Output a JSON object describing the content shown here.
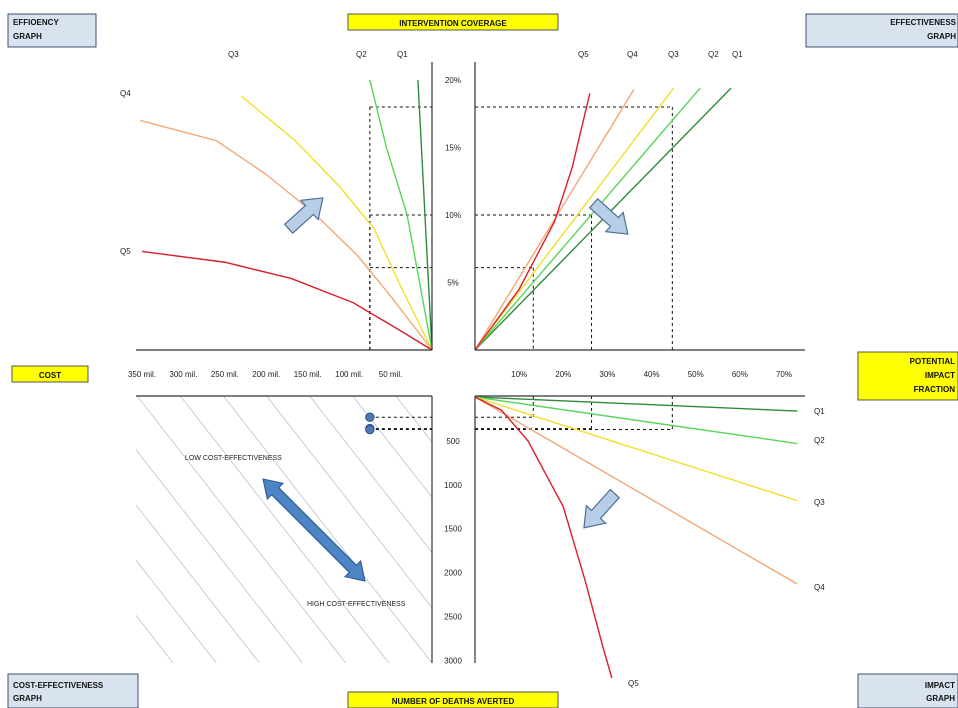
{
  "labels": {
    "top_center": "INTERVENTION COVERAGE",
    "bottom_center": "NUMBER OF DEATHS AVERTED",
    "left_center": "COST",
    "right_center_lines": [
      "POTENTIAL",
      "IMPACT",
      "FRACTION"
    ],
    "top_left_lines": [
      "EFFIOENCY",
      "GRAPH"
    ],
    "top_right_lines": [
      "EFFECTIVENESS",
      "GRAPH"
    ],
    "bottom_left_lines": [
      "COST-EFFECTIVENESS",
      "GRAPH"
    ],
    "bottom_right_lines": [
      "IMPACT",
      "GRAPH"
    ]
  },
  "colors": {
    "box_fill": "#d9e3ef",
    "box_stroke": "#3f5268",
    "yellow_fill": "#ffff00",
    "yellow_stroke": "#555555",
    "axis": "#333333",
    "guide": "#111111",
    "q1": "#2e8b3a",
    "q2": "#59d559",
    "q3": "#f0df2a",
    "q4": "#f2a777",
    "q5": "#db1e2b",
    "arrow_light_fill": "#b8cde6",
    "arrow_light_stroke": "#4c6f96",
    "arrow_dark_fill": "#4d84c6",
    "arrow_dark_stroke": "#325f95",
    "hatch": "#8aa4bf"
  },
  "chart_data": [
    {
      "title": "EFFIOENCY GRAPH",
      "type": "line",
      "x_axis": {
        "label": "COST",
        "tick_labels": [
          "350 mil.",
          "300 mil.",
          "250 mil.",
          "200 mil.",
          "150 mil.",
          "100 mil.",
          "50 mil."
        ],
        "tick_values": [
          350,
          300,
          250,
          200,
          150,
          100,
          50
        ],
        "range": [
          0,
          360
        ],
        "units": "mil."
      },
      "y_axis": {
        "label": "INTERVENTION COVERAGE",
        "tick_labels": [
          "5%",
          "10%",
          "15%",
          "20%"
        ],
        "tick_values": [
          5,
          10,
          15,
          20
        ],
        "range": [
          0,
          20
        ]
      },
      "series": [
        {
          "name": "Q1",
          "color": "#2e8b3a",
          "points": [
            [
              0,
              0
            ],
            [
              17,
              20
            ]
          ]
        },
        {
          "name": "Q2",
          "color": "#59d559",
          "points": [
            [
              0,
              0
            ],
            [
              30,
              10
            ],
            [
              55,
              15
            ],
            [
              67,
              18
            ],
            [
              75,
              20
            ]
          ]
        },
        {
          "name": "Q3",
          "color": "#f0df2a",
          "points": [
            [
              0,
              0
            ],
            [
              40,
              5
            ],
            [
              70,
              9
            ],
            [
              110,
              12
            ],
            [
              165,
              15.5
            ],
            [
              230,
              18.8
            ]
          ]
        },
        {
          "name": "Q4",
          "color": "#f2a777",
          "points": [
            [
              0,
              0
            ],
            [
              50,
              4
            ],
            [
              90,
              7
            ],
            [
              140,
              10
            ],
            [
              200,
              13
            ],
            [
              260,
              15.5
            ],
            [
              352,
              17
            ]
          ]
        },
        {
          "name": "Q5",
          "color": "#db1e2b",
          "points": [
            [
              0,
              0
            ],
            [
              40,
              1.5
            ],
            [
              95,
              3.5
            ],
            [
              170,
              5.3
            ],
            [
              250,
              6.5
            ],
            [
              350,
              7.3
            ]
          ]
        }
      ],
      "guides": [
        {
          "coverage": 6.1,
          "cost": 75
        },
        {
          "coverage": 10,
          "cost": 75
        },
        {
          "coverage": 18,
          "cost": 75
        }
      ]
    },
    {
      "title": "EFFECTIVENESS GRAPH",
      "type": "line",
      "x_axis": {
        "label": "POTENTIAL IMPACT FRACTION",
        "tick_labels": [
          "10%",
          "20%",
          "30%",
          "40%",
          "50%",
          "60%",
          "70%"
        ],
        "tick_values": [
          10,
          20,
          30,
          40,
          50,
          60,
          70
        ],
        "range": [
          0,
          75
        ]
      },
      "y_axis": {
        "label": "INTERVENTION COVERAGE",
        "tick_labels": [
          "5%",
          "10%",
          "15%",
          "20%"
        ],
        "tick_values": [
          5,
          10,
          15,
          20
        ],
        "range": [
          0,
          20
        ]
      },
      "series": [
        {
          "name": "Q1",
          "color": "#2e8b3a",
          "points": [
            [
              0,
              0
            ],
            [
              58,
              19.4
            ]
          ]
        },
        {
          "name": "Q2",
          "color": "#59d559",
          "points": [
            [
              0,
              0
            ],
            [
              51,
              19.4
            ]
          ]
        },
        {
          "name": "Q3",
          "color": "#f0df2a",
          "points": [
            [
              0,
              0
            ],
            [
              45,
              19.4
            ]
          ]
        },
        {
          "name": "Q4",
          "color": "#f2a777",
          "points": [
            [
              0,
              0
            ],
            [
              36,
              19.3
            ]
          ]
        },
        {
          "name": "Q5",
          "color": "#db1e2b",
          "points": [
            [
              0,
              0
            ],
            [
              10,
              4.5
            ],
            [
              18,
              9.5
            ],
            [
              22,
              13.5
            ],
            [
              26,
              19
            ]
          ]
        }
      ],
      "guides": [
        {
          "coverage": 6.1,
          "impact": 13.2
        },
        {
          "coverage": 10,
          "impact": 26.4
        },
        {
          "coverage": 18,
          "impact": 44.7
        }
      ]
    },
    {
      "title": "IMPACT GRAPH",
      "type": "line",
      "x_axis": {
        "label": "POTENTIAL IMPACT FRACTION",
        "tick_labels": [
          "10%",
          "20%",
          "30%",
          "40%",
          "50%",
          "60%",
          "70%"
        ],
        "tick_values": [
          10,
          20,
          30,
          40,
          50,
          60,
          70
        ],
        "range": [
          0,
          75
        ]
      },
      "y_axis": {
        "label": "NUMBER OF DEATHS AVERTED",
        "tick_labels": [
          "500",
          "1000",
          "1500",
          "2000",
          "2500",
          "3000"
        ],
        "tick_values": [
          500,
          1000,
          1500,
          2000,
          2500,
          3000
        ],
        "range": [
          0,
          3200
        ]
      },
      "series": [
        {
          "name": "Q1",
          "color": "#2e8b3a",
          "points": [
            [
              0,
              0
            ],
            [
              73,
              160
            ]
          ]
        },
        {
          "name": "Q2",
          "color": "#59d559",
          "points": [
            [
              0,
              0
            ],
            [
              73,
              530
            ]
          ]
        },
        {
          "name": "Q3",
          "color": "#f0df2a",
          "points": [
            [
              0,
              0
            ],
            [
              73,
              1180
            ]
          ]
        },
        {
          "name": "Q4",
          "color": "#f2a777",
          "points": [
            [
              0,
              0
            ],
            [
              73,
              2130
            ]
          ]
        },
        {
          "name": "Q5",
          "color": "#db1e2b",
          "points": [
            [
              0,
              0
            ],
            [
              6,
              150
            ],
            [
              12,
              500
            ],
            [
              20,
              1250
            ],
            [
              25,
              2100
            ],
            [
              29,
              2850
            ],
            [
              31,
              3200
            ]
          ]
        }
      ],
      "guides": [
        {
          "impact": 13.2,
          "deaths": 230
        },
        {
          "impact": 26.4,
          "deaths": 360
        },
        {
          "impact": 44.7,
          "deaths": 370
        }
      ]
    },
    {
      "title": "COST-EFFECTIVENESS GRAPH",
      "type": "scatter",
      "x_axis": {
        "label": "COST",
        "tick_labels": [
          "350 mil.",
          "300 mil.",
          "250 mil.",
          "200 mil.",
          "150 mil.",
          "100 mil.",
          "50 mil."
        ],
        "tick_values": [
          350,
          300,
          250,
          200,
          150,
          100,
          50
        ],
        "range": [
          0,
          360
        ],
        "units": "mil."
      },
      "y_axis": {
        "label": "NUMBER OF DEATHS AVERTED",
        "tick_labels": [
          "500",
          "1000",
          "1500",
          "2000",
          "2500",
          "3000"
        ],
        "tick_values": [
          500,
          1000,
          1500,
          2000,
          2500,
          3000
        ],
        "range": [
          0,
          3200
        ]
      },
      "points": [
        {
          "cost": 75,
          "deaths": 230
        },
        {
          "cost": 75,
          "deaths": 360
        },
        {
          "cost": 75,
          "deaths": 370
        }
      ],
      "annotations": [
        "LOW COST-EFFECTIVENESS",
        "HIGH COST-EFFECTIVENESS"
      ]
    }
  ],
  "series_labels": [
    "Q1",
    "Q2",
    "Q3",
    "Q4",
    "Q5"
  ]
}
